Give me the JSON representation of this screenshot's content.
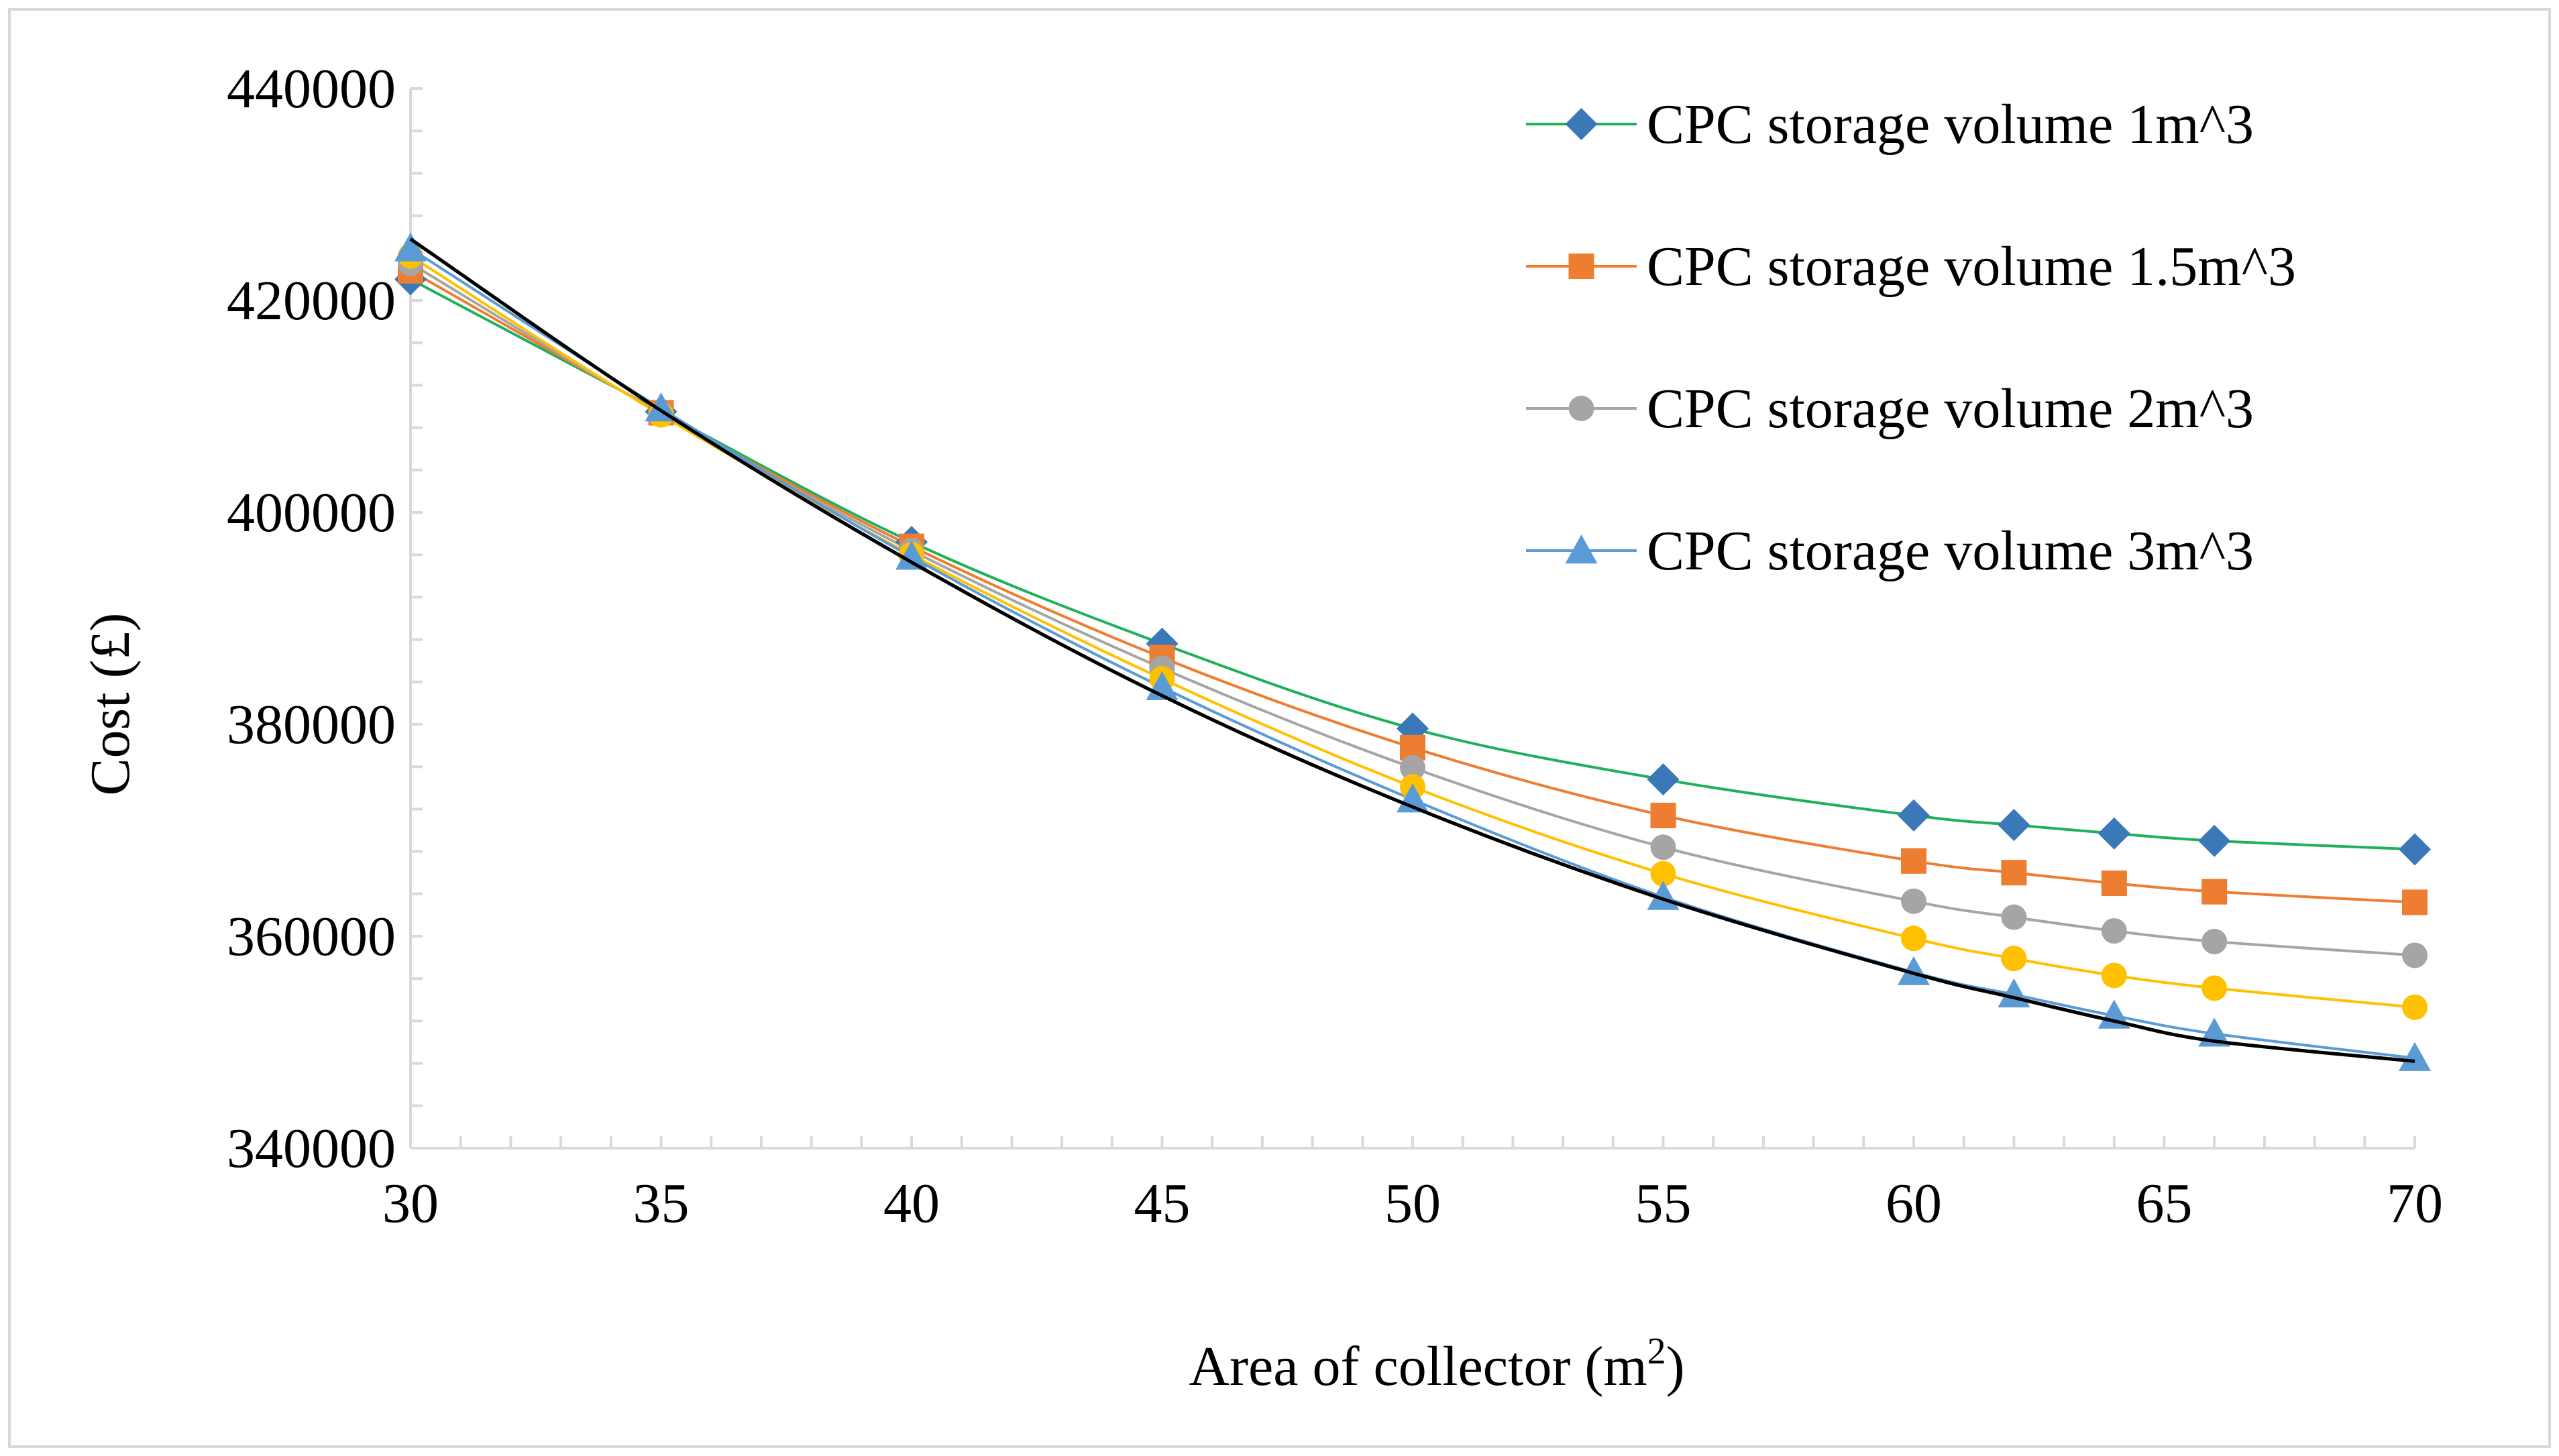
{
  "chart_data": {
    "type": "line",
    "title": "",
    "xlabel": "Area of collector (m",
    "xlabel_superscript": "2",
    "xlabel_suffix": ")",
    "ylabel": "Cost (£)",
    "xlim": [
      30,
      70
    ],
    "ylim": [
      340000,
      440000
    ],
    "x_ticks": [
      30,
      35,
      40,
      45,
      50,
      55,
      60,
      65,
      70
    ],
    "x_tick_labels": [
      "30",
      "35",
      "40",
      "45",
      "50",
      "55",
      "60",
      "65",
      "70"
    ],
    "y_ticks": [
      340000,
      360000,
      380000,
      400000,
      420000,
      440000
    ],
    "y_tick_labels": [
      "340000",
      "360000",
      "380000",
      "400000",
      "420000",
      "440000"
    ],
    "x": [
      30,
      35,
      40,
      45,
      50,
      55,
      60,
      62,
      64,
      66,
      70
    ],
    "legend_position": "top-right",
    "grid": false,
    "series": [
      {
        "name": "CPC storage volume 1m^3",
        "color": "#1fb05a",
        "marker_color": "#3a78b8",
        "marker": "diamond",
        "in_legend": true,
        "values": [
          422000,
          409500,
          397200,
          387600,
          379600,
          374800,
          371400,
          370500,
          369700,
          369000,
          368200
        ]
      },
      {
        "name": "CPC storage volume 1.5m^3",
        "color": "#ed7d31",
        "marker_color": "#ed7d31",
        "marker": "square",
        "in_legend": true,
        "values": [
          422800,
          409400,
          396800,
          386300,
          377800,
          371400,
          367100,
          366000,
          365000,
          364200,
          363200
        ]
      },
      {
        "name": "CPC storage volume 2m^3",
        "color": "#a5a5a5",
        "marker_color": "#a5a5a5",
        "marker": "circle",
        "in_legend": true,
        "values": [
          423500,
          409300,
          396400,
          385300,
          375900,
          368400,
          363300,
          361800,
          360500,
          359500,
          358200
        ]
      },
      {
        "name": "",
        "color": "#ffc000",
        "marker_color": "#ffc000",
        "marker": "circle",
        "in_legend": false,
        "values": [
          424200,
          409200,
          396000,
          384300,
          374100,
          365900,
          359800,
          357900,
          356300,
          355100,
          353300
        ]
      },
      {
        "name": "CPC storage volume 3m^3",
        "color": "#5b9bd5",
        "marker_color": "#5b9bd5",
        "marker": "triangle",
        "in_legend": true,
        "values": [
          424900,
          409800,
          395800,
          383500,
          372900,
          363700,
          356600,
          354500,
          352500,
          350800,
          348500
        ]
      },
      {
        "name": "",
        "color": "#000000",
        "marker_color": "#000000",
        "marker": "none",
        "in_legend": false,
        "values": [
          425800,
          409600,
          395300,
          382700,
          372200,
          363500,
          356500,
          354200,
          352000,
          350100,
          348200
        ]
      }
    ]
  }
}
